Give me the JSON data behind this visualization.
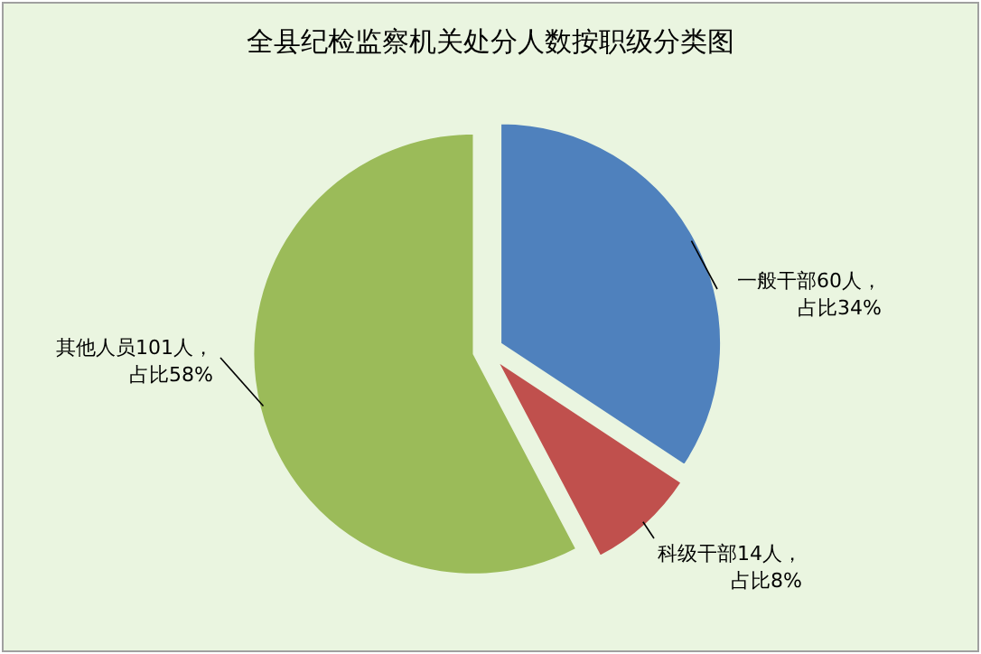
{
  "chart_data": {
    "type": "pie",
    "title": "全县纪检监察机关处分人数按职级分类图",
    "categories": [
      "一般干部60人，占比34%",
      "科级干部14人，占比8%",
      "其他人员101人，占比58%"
    ],
    "values": [
      60,
      14,
      101
    ],
    "colors": [
      "#4f81bd",
      "#c0504d",
      "#9bbb59"
    ],
    "legend": false
  }
}
